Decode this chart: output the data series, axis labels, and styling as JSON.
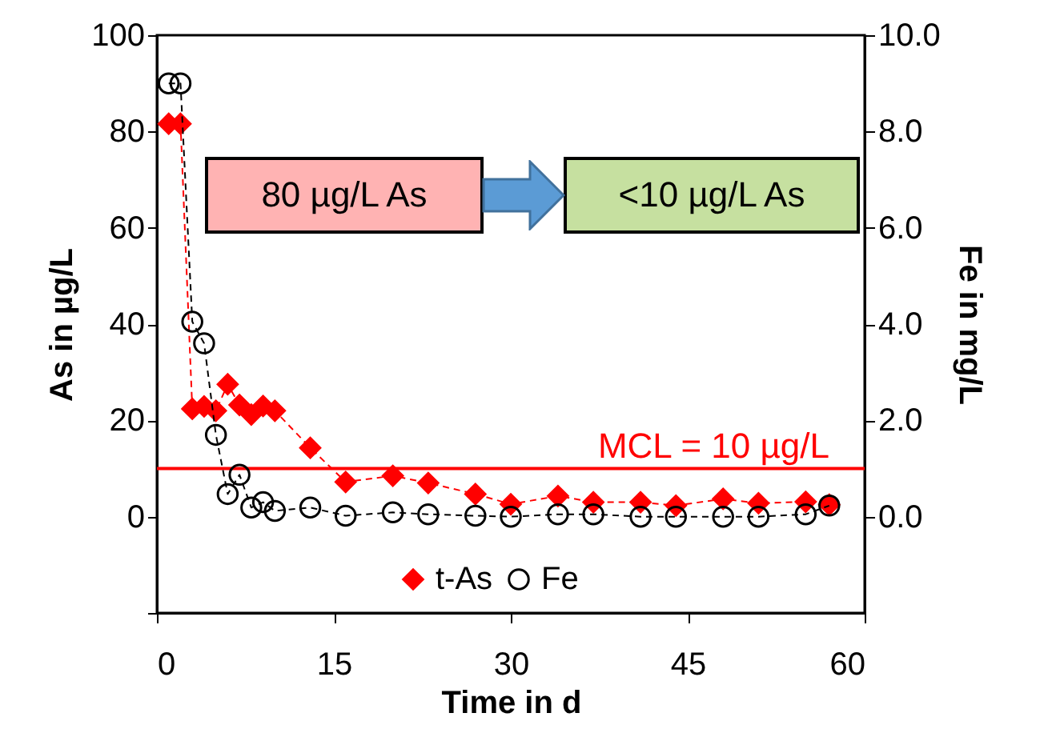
{
  "chart_data": {
    "type": "line",
    "xlabel": "Time in d",
    "ylabel": "As in µg/L",
    "y2label": "Fe in mg/L",
    "xlim": [
      0,
      60
    ],
    "xticks": [
      0,
      15,
      30,
      45,
      60
    ],
    "ylim": [
      -20,
      100
    ],
    "yticks": [
      {
        "value": -20,
        "label": null
      },
      0,
      20,
      40,
      60,
      80,
      100
    ],
    "y2lim": [
      -2,
      10
    ],
    "y2ticks": [
      {
        "value": 0,
        "label": "0.0"
      },
      {
        "value": 2,
        "label": "2.0"
      },
      {
        "value": 4,
        "label": "4.0"
      },
      {
        "value": 6,
        "label": "6.0"
      },
      {
        "value": 8,
        "label": "8.0"
      },
      {
        "value": 10,
        "label": "10.0"
      }
    ],
    "series": [
      {
        "name": "t-As",
        "color": "#ff0000",
        "marker": "diamond",
        "line_style": "dashed",
        "x": [
          1,
          2,
          3,
          4,
          5,
          6,
          7,
          8,
          9,
          10,
          13,
          16,
          20,
          23,
          27,
          30,
          34,
          37,
          41,
          44,
          48,
          51,
          55,
          57
        ],
        "values": [
          81.6,
          81.6,
          22.4,
          22.9,
          22,
          27.5,
          23.2,
          21.2,
          23,
          22,
          14.3,
          7.2,
          8.5,
          7,
          4.7,
          2.6,
          4.3,
          3,
          3,
          2.3,
          3.7,
          2.8,
          3.1,
          2.5
        ]
      },
      {
        "name": "Fe",
        "color": "#000000",
        "marker": "circle",
        "line_style": "dashed",
        "axis": "y2",
        "x": [
          1,
          2,
          3,
          4,
          5,
          6,
          7,
          8,
          9,
          10,
          13,
          16,
          20,
          23,
          27,
          30,
          34,
          37,
          41,
          44,
          48,
          51,
          55,
          57
        ],
        "values": [
          9.0,
          9.0,
          4.05,
          3.6,
          1.7,
          0.47,
          0.87,
          0.19,
          0.3,
          0.12,
          0.19,
          0.02,
          0.09,
          0.05,
          0.02,
          0,
          0.05,
          0.05,
          0,
          0,
          0,
          0,
          0.05,
          0.23
        ]
      }
    ],
    "ref_lines": [
      {
        "axis": "y",
        "value": 10,
        "label": "MCL = 10 µg/L",
        "color": "#ff0000"
      }
    ],
    "legend": "bottom",
    "annotations": [
      "80 µg/L As",
      "<10 µg/L As"
    ]
  }
}
